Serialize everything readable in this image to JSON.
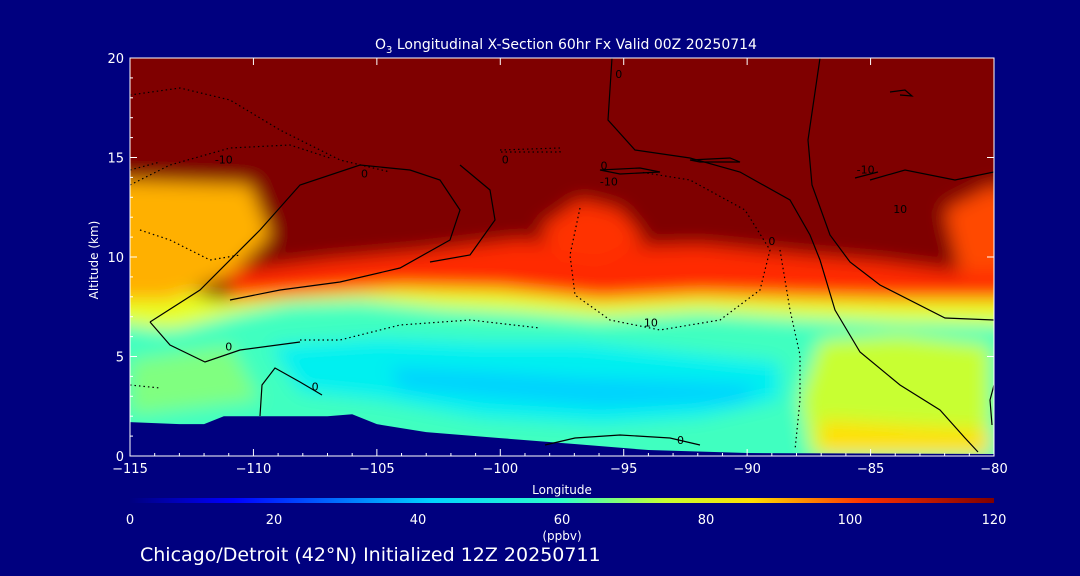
{
  "chart_data": {
    "type": "heatmap",
    "title": "O3 Longitudinal X-Section 60hr  Fx Valid 00Z 20250714",
    "title_parts": {
      "species": "O",
      "subscript": "3",
      "rest": " Longitudinal X-Section 60hr  Fx Valid 00Z 20250714"
    },
    "xlabel": "Longitude",
    "ylabel": "Altitude (km)",
    "xlim": [
      -115,
      -80
    ],
    "ylim": [
      0,
      20
    ],
    "x_ticks": [
      -115,
      -110,
      -105,
      -100,
      -95,
      -90,
      -85,
      -80
    ],
    "y_ticks": [
      0,
      5,
      10,
      15,
      20
    ],
    "colorbar": {
      "min": 0,
      "max": 120,
      "ticks": [
        0,
        20,
        40,
        60,
        80,
        100,
        120
      ],
      "units": "(ppbv)",
      "colormap": "rainbow"
    },
    "contour_labels": [
      {
        "text": "0",
        "lon": -111,
        "alt": 5.3
      },
      {
        "text": "0",
        "lon": -107.5,
        "alt": 3.3
      },
      {
        "text": "0",
        "lon": -105.5,
        "alt": 14
      },
      {
        "text": "-10",
        "lon": -111.2,
        "alt": 14.7
      },
      {
        "text": "-10",
        "lon": -95.6,
        "alt": 13.6
      },
      {
        "text": "-10",
        "lon": -85.2,
        "alt": 14.2
      },
      {
        "text": "10",
        "lon": -93.9,
        "alt": 6.5
      },
      {
        "text": "0",
        "lon": -92.7,
        "alt": 0.6
      },
      {
        "text": "0",
        "lon": -89,
        "alt": 10.6
      },
      {
        "text": "10",
        "lon": -83.8,
        "alt": 12.2
      },
      {
        "text": "0",
        "lon": -95.8,
        "alt": 14.4
      },
      {
        "text": "0",
        "lon": -99.8,
        "alt": 14.7
      },
      {
        "text": "0",
        "lon": -95.2,
        "alt": 19
      }
    ],
    "terrain": [
      {
        "lon": -115,
        "alt": 1.7
      },
      {
        "lon": -113,
        "alt": 1.6
      },
      {
        "lon": -112,
        "alt": 1.6
      },
      {
        "lon": -111.2,
        "alt": 2.0
      },
      {
        "lon": -110,
        "alt": 2.0
      },
      {
        "lon": -107,
        "alt": 2.0
      },
      {
        "lon": -106,
        "alt": 2.1
      },
      {
        "lon": -105,
        "alt": 1.6
      },
      {
        "lon": -103,
        "alt": 1.2
      },
      {
        "lon": -100,
        "alt": 0.9
      },
      {
        "lon": -97,
        "alt": 0.6
      },
      {
        "lon": -94,
        "alt": 0.3
      },
      {
        "lon": -90,
        "alt": 0.15
      },
      {
        "lon": -80,
        "alt": 0.1
      }
    ]
  },
  "footer": {
    "text": "Chicago/Detroit (42°N) Initialized 12Z 20250711"
  }
}
